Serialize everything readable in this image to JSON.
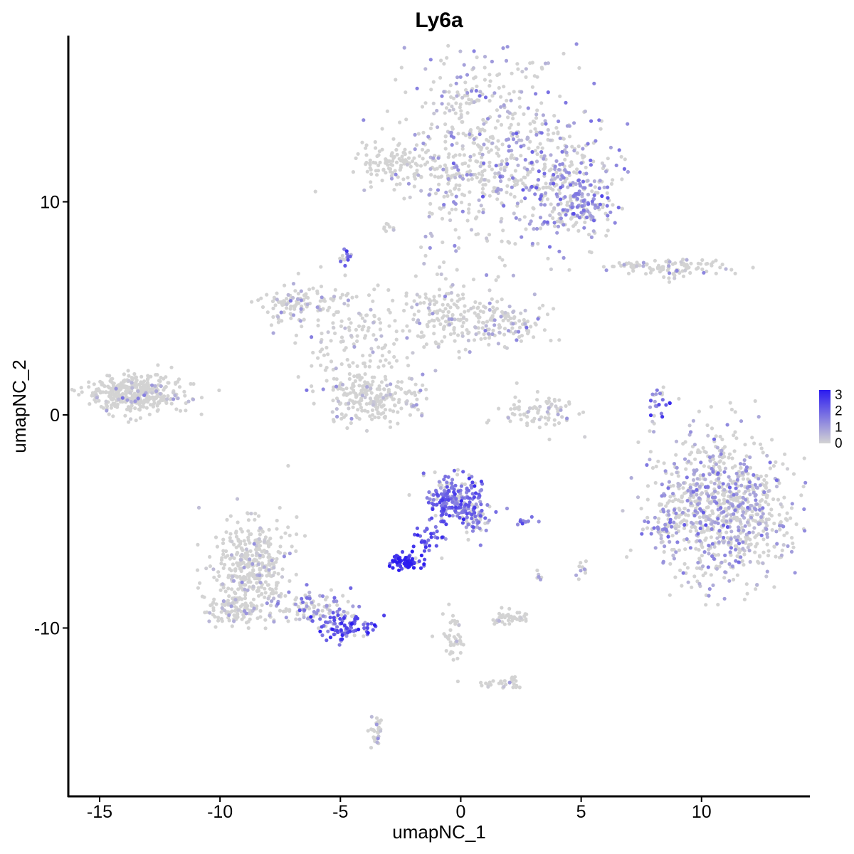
{
  "chart_data": {
    "type": "scatter",
    "title": "Ly6a",
    "xlabel": "umapNC_1",
    "ylabel": "umapNC_2",
    "xlim": [
      -16.3,
      14.5
    ],
    "ylim": [
      -17.9,
      17.8
    ],
    "xticks": [
      -15,
      -10,
      -5,
      0,
      5,
      10
    ],
    "xtick_labels": [
      "-15",
      "-10",
      "-5",
      "0",
      "5",
      "10"
    ],
    "yticks": [
      -10,
      0,
      10
    ],
    "ytick_labels": [
      "-10",
      "0",
      "10"
    ],
    "grid": false,
    "legend": {
      "placement": "right",
      "type": "colorbar",
      "range": [
        0,
        3.3
      ],
      "ticks": [
        0,
        1,
        2,
        3
      ],
      "tick_labels": [
        "0",
        "1",
        "2",
        "3"
      ],
      "low_color": "#d3d3d3",
      "high_color": "#2b1bf0"
    },
    "clusters": [
      {
        "cx": 0.8,
        "cy": 12.6,
        "sx": 1.7,
        "sy": 2.5,
        "n": 520,
        "expr": 0.6
      },
      {
        "cx": 4.2,
        "cy": 11.0,
        "sx": 1.1,
        "sy": 1.4,
        "n": 300,
        "expr": 1.1
      },
      {
        "cx": 5.1,
        "cy": 9.7,
        "sx": 0.6,
        "sy": 0.5,
        "n": 80,
        "expr": 1.3
      },
      {
        "cx": -2.9,
        "cy": 11.9,
        "sx": 0.7,
        "sy": 0.4,
        "n": 90,
        "expr": 0.0
      },
      {
        "cx": -0.5,
        "cy": 11.1,
        "sx": 1.3,
        "sy": 0.3,
        "n": 60,
        "expr": 0.3
      },
      {
        "cx": -3.0,
        "cy": 8.8,
        "sx": 0.1,
        "sy": 0.1,
        "n": 8,
        "expr": 0.1
      },
      {
        "cx": -4.7,
        "cy": 7.4,
        "sx": 0.15,
        "sy": 0.2,
        "n": 15,
        "expr": 1.8
      },
      {
        "cx": 9.0,
        "cy": 6.9,
        "sx": 1.0,
        "sy": 0.2,
        "n": 90,
        "expr": 0.2
      },
      {
        "cx": 7.0,
        "cy": 7.0,
        "sx": 0.4,
        "sy": 0.12,
        "n": 20,
        "expr": 0.1
      },
      {
        "cx": -13.6,
        "cy": 1.0,
        "sx": 1.0,
        "sy": 0.45,
        "n": 400,
        "expr": 0.02
      },
      {
        "cx": -7.0,
        "cy": 5.2,
        "sx": 0.7,
        "sy": 0.4,
        "n": 90,
        "expr": 0.2
      },
      {
        "cx": -4.6,
        "cy": 3.5,
        "sx": 1.1,
        "sy": 1.4,
        "n": 160,
        "expr": 0.15
      },
      {
        "cx": -3.7,
        "cy": 0.8,
        "sx": 0.9,
        "sy": 0.6,
        "n": 200,
        "expr": 0.1
      },
      {
        "cx": -0.8,
        "cy": 4.8,
        "sx": 1.0,
        "sy": 0.8,
        "n": 140,
        "expr": 0.2
      },
      {
        "cx": 1.5,
        "cy": 4.3,
        "sx": 1.0,
        "sy": 0.5,
        "n": 130,
        "expr": 0.3
      },
      {
        "cx": -1.8,
        "cy": 0.8,
        "sx": 0.3,
        "sy": 0.6,
        "n": 20,
        "expr": 0.3
      },
      {
        "cx": 3.3,
        "cy": 0.1,
        "sx": 0.8,
        "sy": 0.5,
        "n": 80,
        "expr": 0.1
      },
      {
        "cx": 8.2,
        "cy": 0.3,
        "sx": 0.25,
        "sy": 0.6,
        "n": 25,
        "expr": 1.5
      },
      {
        "cx": 10.8,
        "cy": -4.4,
        "sx": 1.4,
        "sy": 1.7,
        "n": 900,
        "expr": 0.7
      },
      {
        "cx": 8.4,
        "cy": -5.3,
        "sx": 0.35,
        "sy": 0.4,
        "n": 30,
        "expr": 1.0
      },
      {
        "cx": -0.3,
        "cy": -3.9,
        "sx": 0.6,
        "sy": 0.55,
        "n": 200,
        "expr": 1.7
      },
      {
        "cx": 0.6,
        "cy": -4.9,
        "sx": 0.35,
        "sy": 0.4,
        "n": 60,
        "expr": 1.6
      },
      {
        "cx": -1.3,
        "cy": -5.8,
        "sx": 0.35,
        "sy": 0.4,
        "n": 30,
        "expr": 2.2
      },
      {
        "cx": -2.3,
        "cy": -6.9,
        "sx": 0.35,
        "sy": 0.18,
        "n": 80,
        "expr": 3.0
      },
      {
        "cx": 2.7,
        "cy": -5.0,
        "sx": 0.2,
        "sy": 0.08,
        "n": 10,
        "expr": 1.5
      },
      {
        "cx": -8.7,
        "cy": -7.1,
        "sx": 0.8,
        "sy": 1.1,
        "n": 380,
        "expr": 0.1
      },
      {
        "cx": -9.6,
        "cy": -9.1,
        "sx": 0.5,
        "sy": 0.4,
        "n": 90,
        "expr": 0.05
      },
      {
        "cx": -6.2,
        "cy": -9.0,
        "sx": 0.8,
        "sy": 0.4,
        "n": 100,
        "expr": 1.0
      },
      {
        "cx": -4.8,
        "cy": -9.9,
        "sx": 0.65,
        "sy": 0.35,
        "n": 90,
        "expr": 2.2
      },
      {
        "cx": 2.0,
        "cy": -9.5,
        "sx": 0.4,
        "sy": 0.2,
        "n": 40,
        "expr": 0.1
      },
      {
        "cx": -0.3,
        "cy": -10.5,
        "sx": 0.3,
        "sy": 0.6,
        "n": 40,
        "expr": 0.05
      },
      {
        "cx": 1.8,
        "cy": -12.6,
        "sx": 0.4,
        "sy": 0.12,
        "n": 30,
        "expr": 0.05
      },
      {
        "cx": -3.5,
        "cy": -14.8,
        "sx": 0.12,
        "sy": 0.4,
        "n": 30,
        "expr": 0.1
      },
      {
        "cx": 5.0,
        "cy": -7.3,
        "sx": 0.1,
        "sy": 0.2,
        "n": 10,
        "expr": 0.5
      },
      {
        "cx": 3.3,
        "cy": -7.6,
        "sx": 0.1,
        "sy": 0.1,
        "n": 6,
        "expr": 0.2
      }
    ]
  }
}
